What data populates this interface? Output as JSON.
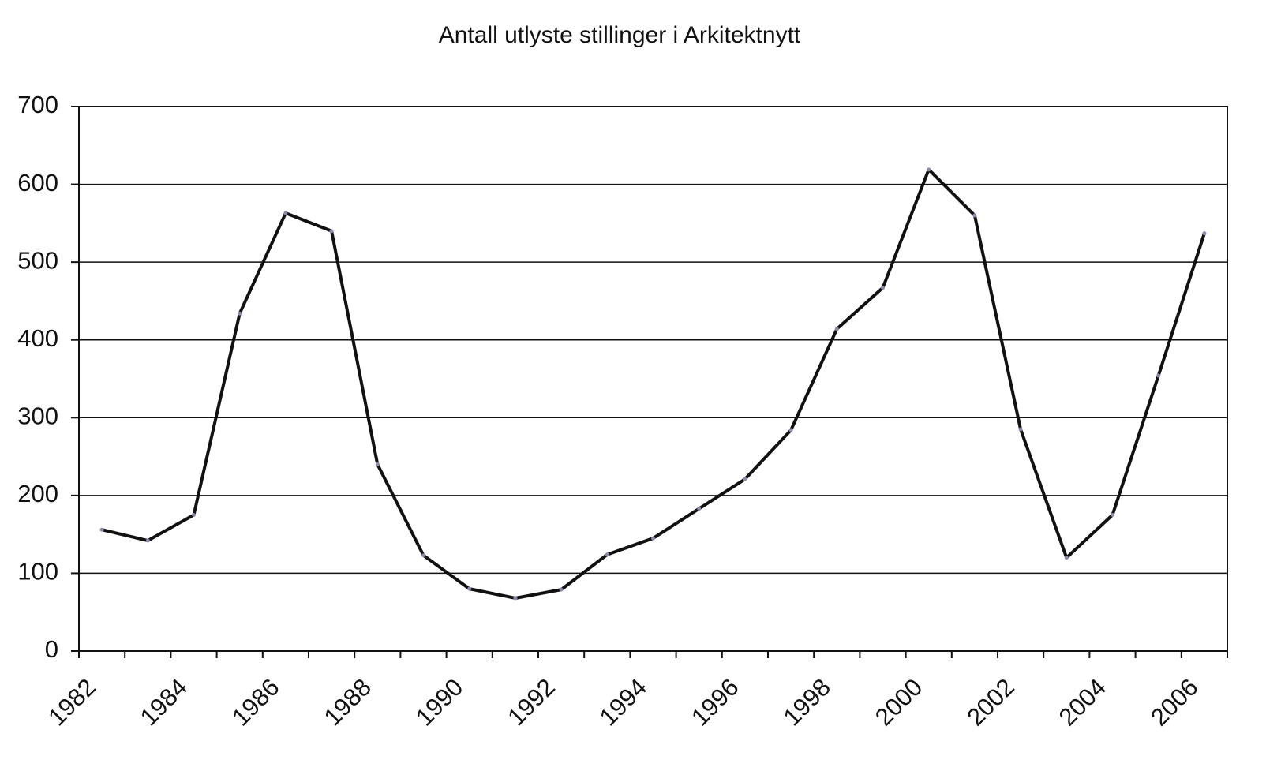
{
  "chart_data": {
    "type": "line",
    "title": "Antall utlyste stillinger i Arkitektnytt",
    "categories": [
      "1982",
      null,
      "1984",
      null,
      "1986",
      null,
      "1988",
      null,
      "1990",
      null,
      "1992",
      null,
      "1994",
      null,
      "1996",
      null,
      "1998",
      null,
      "2000",
      null,
      "2002",
      null,
      "2004",
      null,
      "2006"
    ],
    "series": [
      {
        "name": "Antall",
        "color": "#111111",
        "values": [
          156,
          142,
          175,
          434,
          563,
          540,
          240,
          123,
          80,
          68,
          79,
          124,
          145,
          183,
          221,
          284,
          414,
          467,
          619,
          560,
          285,
          120,
          175,
          354,
          537
        ]
      }
    ],
    "ylim": [
      0,
      700
    ],
    "yticks": [
      0,
      100,
      200,
      300,
      400,
      500,
      600,
      700
    ],
    "grid": true
  }
}
